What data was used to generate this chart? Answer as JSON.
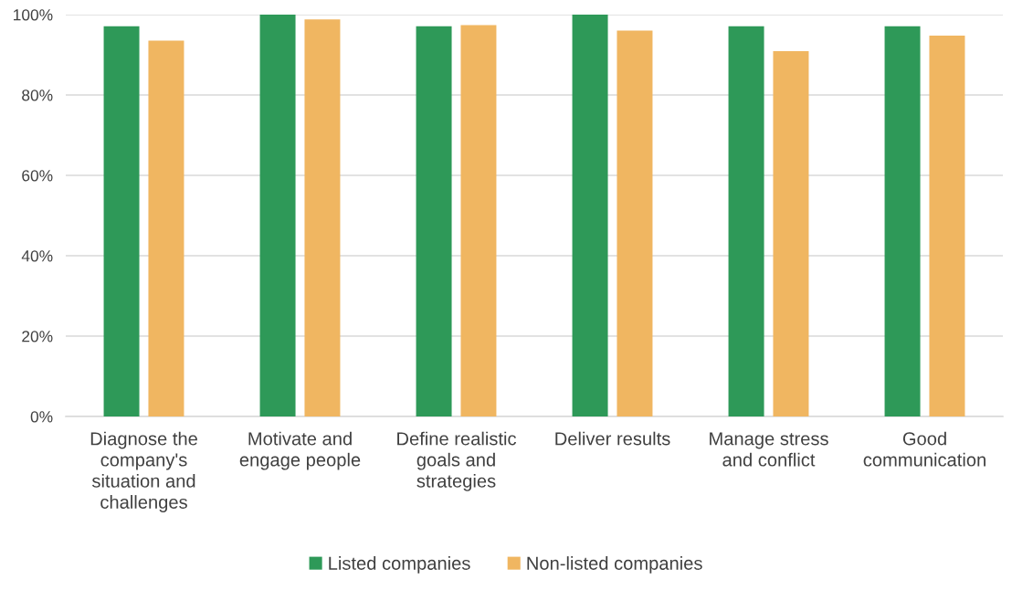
{
  "chart_data": {
    "type": "bar",
    "categories": [
      "Diagnose the company's situation and challenges",
      "Motivate and engage people",
      "Define realistic goals and strategies",
      "Deliver results",
      "Manage stress and conflict",
      "Good communication"
    ],
    "series": [
      {
        "name": "Listed companies",
        "color": "#2e9958",
        "values": [
          97.1,
          100,
          97.1,
          100,
          97.1,
          97.1
        ]
      },
      {
        "name": "Non-listed companies",
        "color": "#f0b661",
        "values": [
          93.5,
          98.8,
          97.4,
          96.0,
          90.9,
          94.8
        ]
      }
    ],
    "ylim": [
      0,
      100
    ],
    "yticks": [
      {
        "value": 0,
        "label": "0%"
      },
      {
        "value": 20,
        "label": "20%"
      },
      {
        "value": 40,
        "label": "40%"
      },
      {
        "value": 60,
        "label": "60%"
      },
      {
        "value": 80,
        "label": "80%"
      },
      {
        "value": 100,
        "label": "100%"
      }
    ],
    "grid": "y",
    "legend": "bottom"
  }
}
